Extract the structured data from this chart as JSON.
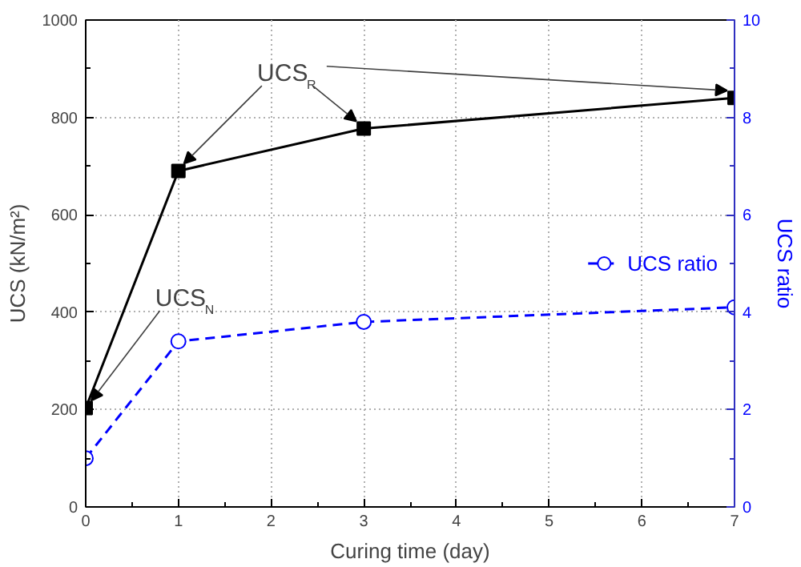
{
  "chart_data": {
    "type": "line",
    "xlabel": "Curing time (day)",
    "ylabel": "UCS (kN/m²)",
    "y2label": "UCS ratio",
    "x": [
      0,
      1,
      3,
      7
    ],
    "series": [
      {
        "color": "#000000",
        "values": [
          203,
          690,
          777,
          840
        ],
        "marker": "square",
        "line_style": "solid"
      },
      {
        "name": "UCS ratio",
        "color": "#0000ff",
        "values": [
          1.0,
          3.4,
          3.8,
          4.1
        ],
        "axis": "y2",
        "marker": "circle",
        "line_style": "dashed"
      }
    ],
    "xlim": [
      0,
      7
    ],
    "xticks": [
      0,
      1,
      2,
      3,
      4,
      5,
      6,
      7
    ],
    "ylim": [
      0,
      1000
    ],
    "yticks": [
      0,
      200,
      400,
      600,
      800,
      1000
    ],
    "y2lim": [
      0,
      10
    ],
    "y2ticks": [
      0,
      2,
      4,
      6,
      8,
      10
    ],
    "annotations": [
      {
        "text": "UCS$_{R}$",
        "x": 1,
        "y": 690
      },
      {
        "text": "UCS$_{N}$",
        "x": 0,
        "y": 203
      }
    ],
    "grid": true,
    "legend": "right"
  }
}
